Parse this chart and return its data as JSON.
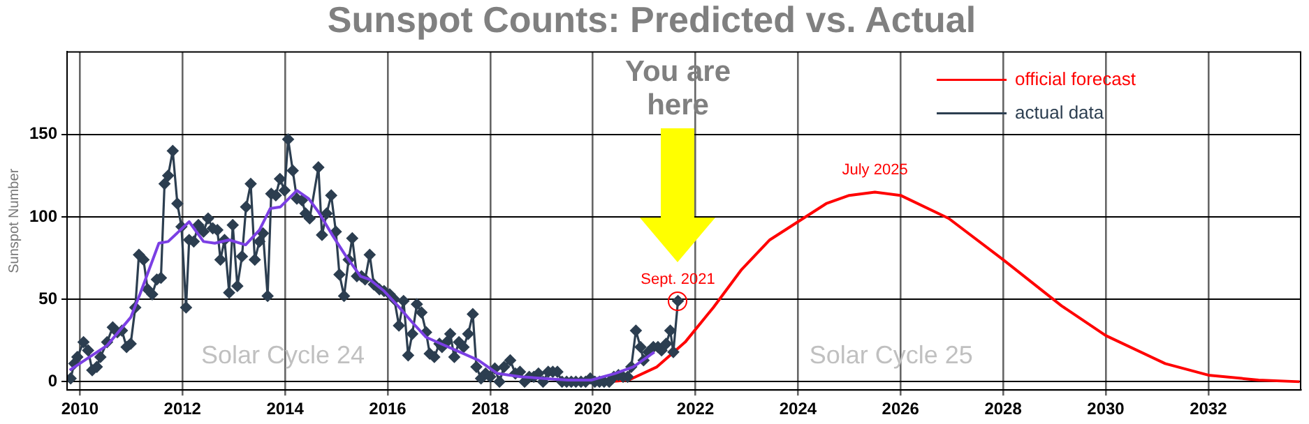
{
  "chart_data": {
    "type": "line",
    "title": "Sunspot Counts: Predicted vs. Actual",
    "ylabel": "Sunspot Number",
    "xlim": [
      2009.75,
      2033.8
    ],
    "xticks": [
      2010,
      2012,
      2014,
      2016,
      2018,
      2020,
      2022,
      2024,
      2026,
      2028,
      2030,
      2032
    ],
    "ylim": [
      -5,
      200
    ],
    "yticks": [
      0,
      50,
      100,
      150
    ],
    "grid": true,
    "legend": "top right",
    "series": [
      {
        "name": "official forecast",
        "color": "#ff0000",
        "marker": "none",
        "x": [
          2020.33,
          2020.7,
          2021.25,
          2021.8,
          2022.35,
          2022.9,
          2023.45,
          2024.0,
          2024.55,
          2025.0,
          2025.5,
          2026.0,
          2026.94,
          2028.0,
          2029.14,
          2030.0,
          2031.16,
          2032.0,
          2032.98,
          2033.78
        ],
        "values": [
          0,
          1,
          9,
          24,
          45,
          68,
          86,
          97,
          108,
          113,
          115,
          113,
          99,
          74,
          46,
          28,
          11,
          4,
          1,
          0
        ]
      },
      {
        "name": "actual data",
        "color": "#2c3e50",
        "marker": "diamond",
        "x": [
          2009.82,
          2009.89,
          2009.95,
          2010.07,
          2010.16,
          2010.24,
          2010.33,
          2010.4,
          2010.53,
          2010.64,
          2010.73,
          2010.82,
          2010.91,
          2010.99,
          2011.08,
          2011.15,
          2011.24,
          2011.32,
          2011.41,
          2011.5,
          2011.58,
          2011.65,
          2011.72,
          2011.81,
          2011.9,
          2011.98,
          2012.07,
          2012.13,
          2012.22,
          2012.31,
          2012.41,
          2012.5,
          2012.59,
          2012.68,
          2012.74,
          2012.82,
          2012.91,
          2012.98,
          2013.07,
          2013.16,
          2013.24,
          2013.33,
          2013.41,
          2013.5,
          2013.57,
          2013.66,
          2013.73,
          2013.82,
          2013.9,
          2013.99,
          2014.06,
          2014.15,
          2014.23,
          2014.33,
          2014.4,
          2014.48,
          2014.65,
          2014.72,
          2014.81,
          2014.9,
          2014.99,
          2015.06,
          2015.15,
          2015.24,
          2015.31,
          2015.4,
          2015.49,
          2015.56,
          2015.65,
          2015.73,
          2015.84,
          2015.93,
          2016.04,
          2016.13,
          2016.22,
          2016.31,
          2016.4,
          2016.48,
          2016.57,
          2016.66,
          2016.75,
          2016.82,
          2016.91,
          2017.01,
          2017.06,
          2017.15,
          2017.22,
          2017.3,
          2017.39,
          2017.48,
          2017.57,
          2017.66,
          2017.73,
          2017.82,
          2017.91,
          2018.0,
          2018.09,
          2018.18,
          2018.27,
          2018.39,
          2018.49,
          2018.58,
          2018.67,
          2018.76,
          2018.85,
          2018.94,
          2019.03,
          2019.13,
          2019.22,
          2019.31,
          2019.4,
          2019.49,
          2019.58,
          2019.67,
          2019.77,
          2019.86,
          2019.95,
          2020.04,
          2020.13,
          2020.22,
          2020.32,
          2020.41,
          2020.5,
          2020.59,
          2020.68,
          2020.75,
          2020.84,
          2020.93,
          2020.99,
          2021.08,
          2021.18,
          2021.27,
          2021.34,
          2021.43,
          2021.51,
          2021.57,
          2021.66
        ],
        "values": [
          2,
          11,
          15,
          24,
          19,
          7,
          9,
          15,
          24,
          33,
          30,
          31,
          21,
          23,
          45,
          77,
          74,
          56,
          53,
          62,
          63,
          120,
          125,
          140,
          108,
          94,
          45,
          86,
          85,
          95,
          91,
          99,
          93,
          92,
          74,
          86,
          54,
          95,
          58,
          76,
          106,
          120,
          74,
          85,
          90,
          52,
          114,
          113,
          123,
          116,
          147,
          128,
          111,
          110,
          102,
          99,
          130,
          89,
          102,
          113,
          91,
          65,
          52,
          74,
          87,
          64,
          64,
          62,
          77,
          59,
          56,
          55,
          53,
          50,
          34,
          49,
          16,
          29,
          47,
          42,
          30,
          17,
          15,
          23,
          21,
          24,
          29,
          15,
          24,
          21,
          29,
          41,
          9,
          2,
          5,
          3,
          8,
          0,
          9,
          13,
          5,
          6,
          0,
          3,
          3,
          5,
          0,
          6,
          6,
          6,
          0,
          0,
          0,
          0,
          0,
          0,
          2,
          0,
          0,
          0,
          0,
          3,
          4,
          3,
          3,
          9,
          31,
          21,
          13,
          18,
          21,
          21,
          19,
          23,
          31,
          18,
          49
        ]
      },
      {
        "color": "#7b3fe4",
        "marker": "none",
        "x": [
          2009.8,
          2010.53,
          2010.99,
          2011.17,
          2011.54,
          2011.72,
          2012.13,
          2012.41,
          2012.63,
          2012.91,
          2013.23,
          2013.5,
          2013.71,
          2013.91,
          2014.23,
          2014.46,
          2014.65,
          2014.92,
          2015.19,
          2015.47,
          2015.65,
          2015.93,
          2016.2,
          2016.48,
          2016.75,
          2017.04,
          2017.41,
          2017.77,
          2018.14,
          2018.59,
          2019.05,
          2019.51,
          2019.97,
          2020.43,
          2020.79,
          2021.2
        ],
        "values": [
          7,
          22,
          39,
          53,
          84,
          85,
          97,
          85,
          84,
          86,
          83,
          92,
          105,
          106,
          116,
          111,
          103,
          89,
          76,
          64,
          62,
          55,
          46,
          36,
          27,
          23,
          18,
          13,
          5,
          3,
          2,
          1,
          1,
          5,
          9,
          18
        ]
      }
    ],
    "annotations": [
      "You are here",
      {
        "text": "Sept. 2021",
        "x": 2021.66,
        "y": 49
      },
      {
        "text": "July 2025",
        "x": 2025.5,
        "y": 115
      },
      "Solar Cycle 24",
      "Solar Cycle 25"
    ]
  }
}
